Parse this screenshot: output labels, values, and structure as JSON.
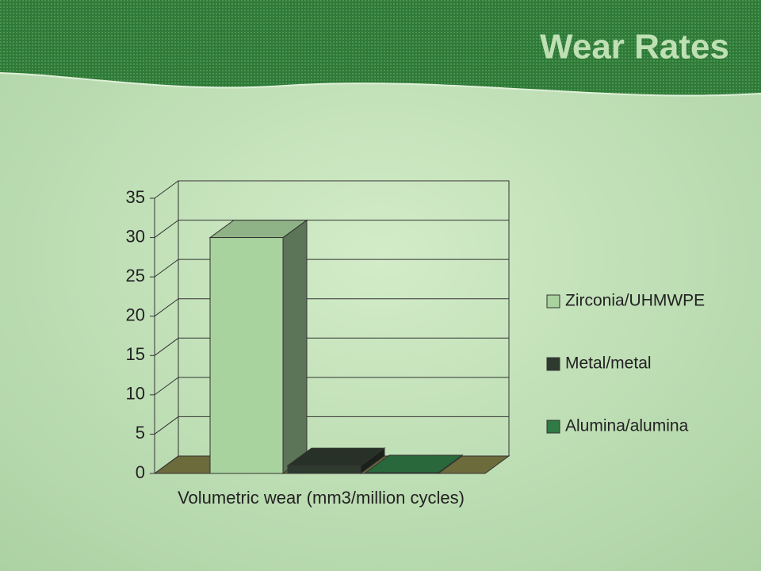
{
  "chart_data": {
    "type": "bar3d",
    "title": "Wear Rates",
    "categories": [
      "Volumetric wear (mm3/million cycles)"
    ],
    "series": [
      {
        "name": "Zirconia/UHMWPE",
        "color": "#a8d39e",
        "values": [
          30
        ]
      },
      {
        "name": "Metal/metal",
        "color": "#2f3a2f",
        "values": [
          1
        ]
      },
      {
        "name": "Alumina/alumina",
        "color": "#2f7a45",
        "values": [
          0.1
        ]
      }
    ],
    "ylim": [
      0,
      35
    ],
    "yticks": [
      0,
      5,
      10,
      15,
      20,
      25,
      30,
      35
    ],
    "grid": true,
    "legend": "right"
  }
}
